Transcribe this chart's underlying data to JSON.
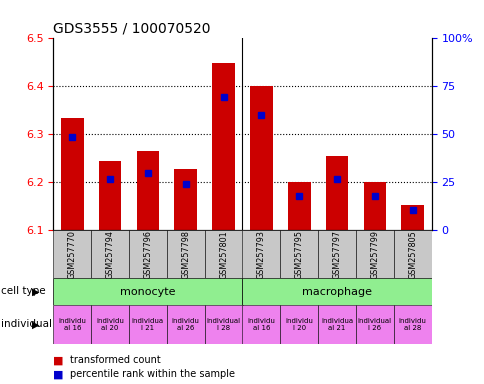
{
  "title": "GDS3555 / 100070520",
  "samples": [
    "GSM257770",
    "GSM257794",
    "GSM257796",
    "GSM257798",
    "GSM257801",
    "GSM257793",
    "GSM257795",
    "GSM257797",
    "GSM257799",
    "GSM257805"
  ],
  "red_values": [
    6.335,
    6.245,
    6.265,
    6.228,
    6.448,
    6.4,
    6.2,
    6.255,
    6.2,
    6.153
  ],
  "blue_values": [
    6.295,
    6.207,
    6.22,
    6.196,
    6.378,
    6.34,
    6.172,
    6.208,
    6.172,
    6.143
  ],
  "ylim": [
    6.1,
    6.5
  ],
  "yticks_left": [
    6.1,
    6.2,
    6.3,
    6.4,
    6.5
  ],
  "yticks_right": [
    0,
    25,
    50,
    75,
    100
  ],
  "bar_color": "#CC0000",
  "blue_color": "#0000CC",
  "label_row1": "cell type",
  "label_row2": "individual",
  "legend_red": "transformed count",
  "legend_blue": "percentile rank within the sample",
  "bar_width": 0.6,
  "base": 6.1,
  "ind_labels": [
    "individu\nal 16",
    "individu\nal 20",
    "individua\nl 21",
    "individu\nal 26",
    "individual\nl 28",
    "individu\nal 16",
    "individu\nl 20",
    "individua\nal 21",
    "individual\nl 26",
    "individu\nal 28"
  ],
  "cell_type_green": "#90EE90",
  "ind_purple": "#EE82EE",
  "gray_color": "#C8C8C8"
}
